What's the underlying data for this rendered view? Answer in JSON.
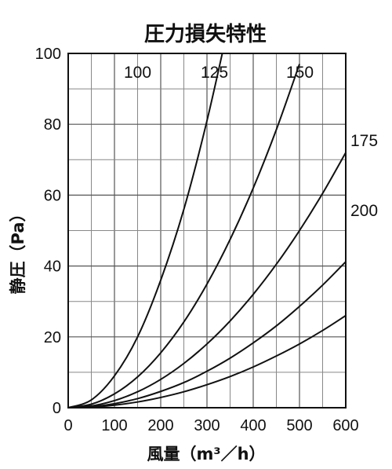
{
  "chart_data": {
    "type": "line",
    "title": "圧力損失特性",
    "xlabel": "風量（m³／h）",
    "ylabel": "静圧（Pa）",
    "xlim": [
      0,
      600
    ],
    "ylim": [
      0,
      100
    ],
    "xticks": [
      "0",
      "100",
      "200",
      "300",
      "400",
      "500",
      "600"
    ],
    "yticks": [
      "0",
      "20",
      "40",
      "60",
      "80",
      "100"
    ],
    "grid": true,
    "x": [
      0,
      50,
      100,
      150,
      200,
      250,
      300,
      350,
      400,
      450,
      500,
      550,
      600
    ],
    "series": [
      {
        "name": "100",
        "values": [
          0,
          2.2,
          9,
          20,
          36,
          56,
          81,
          110,
          null,
          null,
          null,
          null,
          null
        ]
      },
      {
        "name": "125",
        "values": [
          0,
          1.0,
          3.9,
          8.7,
          15.5,
          24.2,
          34.9,
          47.5,
          62,
          78.5,
          97,
          null,
          null
        ]
      },
      {
        "name": "150",
        "values": [
          0,
          0.5,
          2.0,
          4.5,
          8.0,
          12.5,
          18,
          24.5,
          32,
          40.5,
          50,
          60.5,
          72
        ]
      },
      {
        "name": "175",
        "values": [
          0,
          0.29,
          1.14,
          2.57,
          4.6,
          7.1,
          10.3,
          14.0,
          18.3,
          23.1,
          28.6,
          34.6,
          41.2
        ]
      },
      {
        "name": "200",
        "values": [
          0,
          0.18,
          0.72,
          1.62,
          2.9,
          4.5,
          6.5,
          8.8,
          11.5,
          14.6,
          18.0,
          21.8,
          26.0
        ]
      }
    ]
  }
}
